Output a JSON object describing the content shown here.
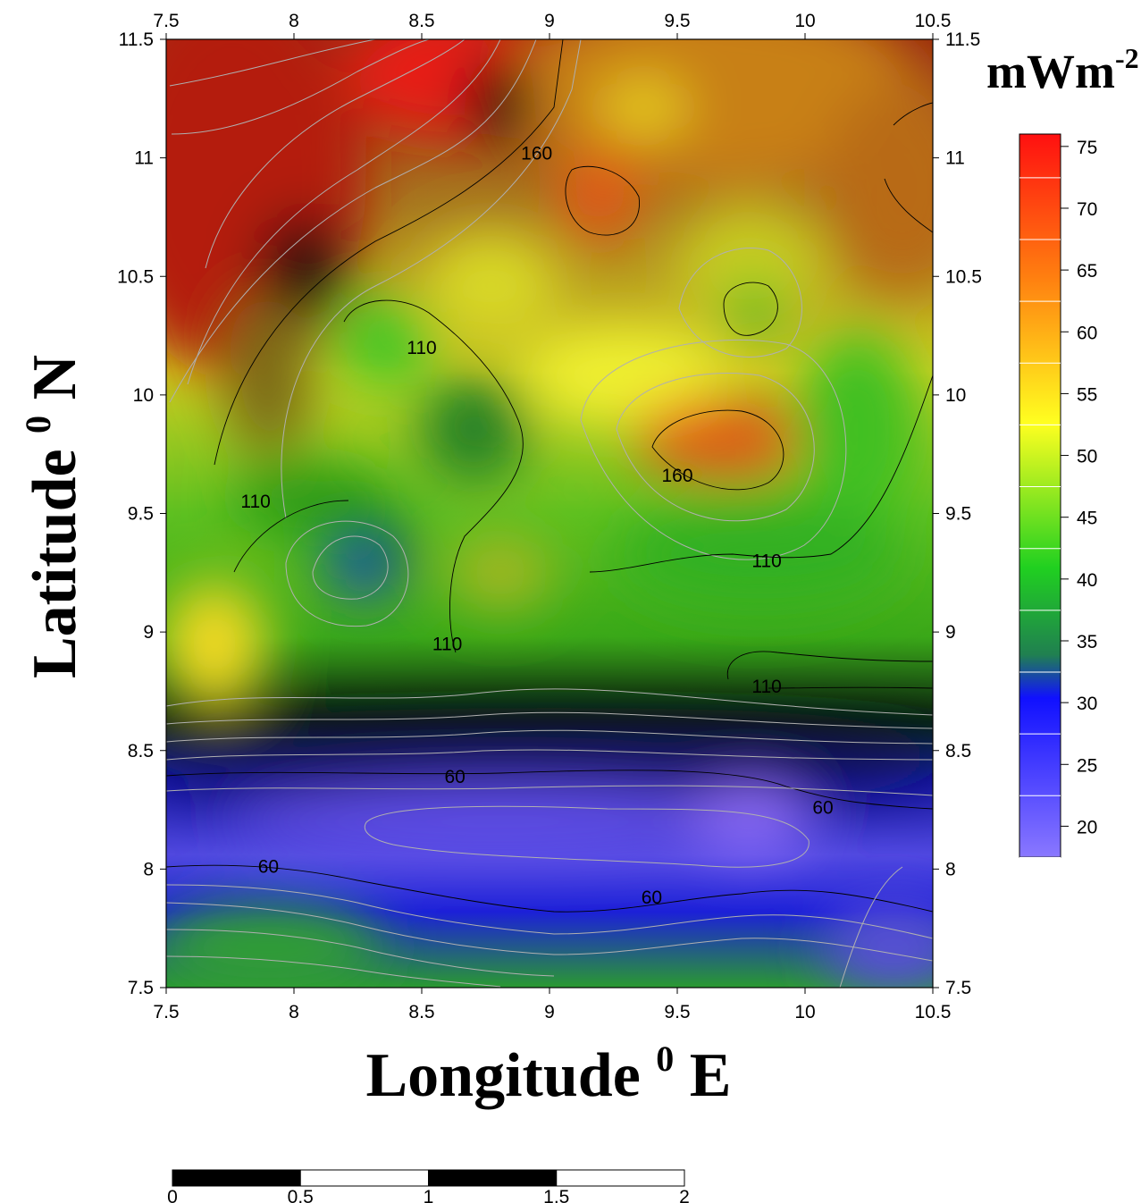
{
  "map": {
    "x_axis": {
      "title_main": "Longitude",
      "title_sup": "0",
      "title_end": "E",
      "ticks": [
        "7.5",
        "8",
        "8.5",
        "9",
        "9.5",
        "10",
        "10.5"
      ],
      "range": [
        7.5,
        10.5
      ]
    },
    "y_axis": {
      "title_main": "Latitude",
      "title_sup": "0",
      "title_end": "N",
      "ticks": [
        "7.5",
        "8",
        "8.5",
        "9",
        "9.5",
        "10",
        "10.5",
        "11",
        "11.5"
      ],
      "range": [
        7.5,
        11.5
      ]
    },
    "colorbar": {
      "unit_main": "mWm",
      "unit_sup": "-2",
      "ticks": [
        "75",
        "70",
        "65",
        "60",
        "55",
        "50",
        "45",
        "40",
        "35",
        "30",
        "25",
        "20"
      ],
      "range": [
        17.5,
        76
      ]
    },
    "contour_labels": [
      {
        "text": "160",
        "lon": 8.95,
        "lat": 11.02
      },
      {
        "text": "110",
        "lon": 8.5,
        "lat": 10.2
      },
      {
        "text": "160",
        "lon": 9.5,
        "lat": 9.66
      },
      {
        "text": "110",
        "lon": 7.85,
        "lat": 9.55
      },
      {
        "text": "110",
        "lon": 9.85,
        "lat": 9.3
      },
      {
        "text": "110",
        "lon": 8.6,
        "lat": 8.95
      },
      {
        "text": "110",
        "lon": 9.85,
        "lat": 8.77
      },
      {
        "text": "60",
        "lon": 8.63,
        "lat": 8.39
      },
      {
        "text": "60",
        "lon": 10.07,
        "lat": 8.26
      },
      {
        "text": "60",
        "lon": 7.9,
        "lat": 8.01
      },
      {
        "text": "60",
        "lon": 9.4,
        "lat": 7.88
      }
    ],
    "scale_bar": {
      "labels": [
        "0",
        "0.5",
        "1",
        "1.5",
        "2"
      ]
    }
  }
}
